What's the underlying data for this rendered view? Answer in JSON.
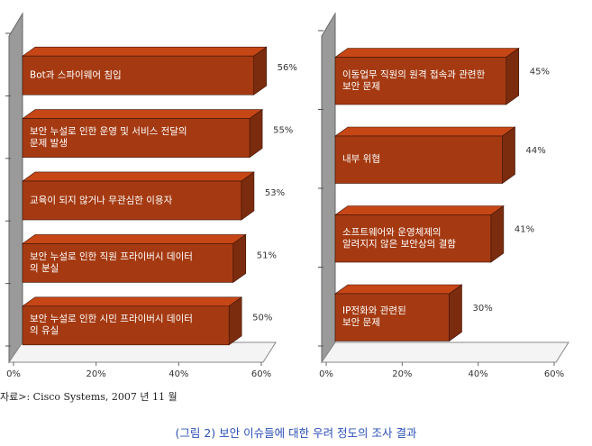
{
  "source": "자료>: Cisco Systems, 2007 년 11 월",
  "caption": "(그림 2) 보안 이슈들에 대한 우려 정도의 조사 결과",
  "chart_data": [
    {
      "type": "bar",
      "orientation": "horizontal",
      "color": "#a53a12",
      "categories": [
        "Bot과 스파이웨어 침입",
        "보안 누설로 인한 운영 및 서비스 전달의\n문제 발생",
        "교육이 되지 않거나 무관심한 이용자",
        "보안 누설로 인한 직원 프라이버시 데이터\n의 분실",
        "보안 누설로 인한 시민 프라이버시 데이터\n의 유실"
      ],
      "values": [
        56,
        55,
        53,
        51,
        50
      ],
      "value_labels": [
        "56%",
        "55%",
        "53%",
        "51%",
        "50%"
      ],
      "xlim": [
        0,
        60
      ],
      "xticks": [
        {
          "value": 0,
          "label": "0%"
        },
        {
          "value": 20,
          "label": "20%"
        },
        {
          "value": 40,
          "label": "40%"
        },
        {
          "value": 60,
          "label": "60%"
        }
      ]
    },
    {
      "type": "bar",
      "orientation": "horizontal",
      "color": "#a53a12",
      "categories": [
        "이동업무 직원의 원격 접속과 관련한\n보안 문제",
        "내부 위협",
        "소프트웨어와 운영체제의\n알려지지 않은 보안상의 결함",
        "IP전화와 관련된\n보안 문제"
      ],
      "values": [
        45,
        44,
        41,
        30
      ],
      "value_labels": [
        "45%",
        "44%",
        "41%",
        "30%"
      ],
      "xlim": [
        0,
        60
      ],
      "xticks": [
        {
          "value": 0,
          "label": "0%"
        },
        {
          "value": 20,
          "label": "20%"
        },
        {
          "value": 40,
          "label": "40%"
        },
        {
          "value": 60,
          "label": "60%"
        }
      ]
    }
  ]
}
